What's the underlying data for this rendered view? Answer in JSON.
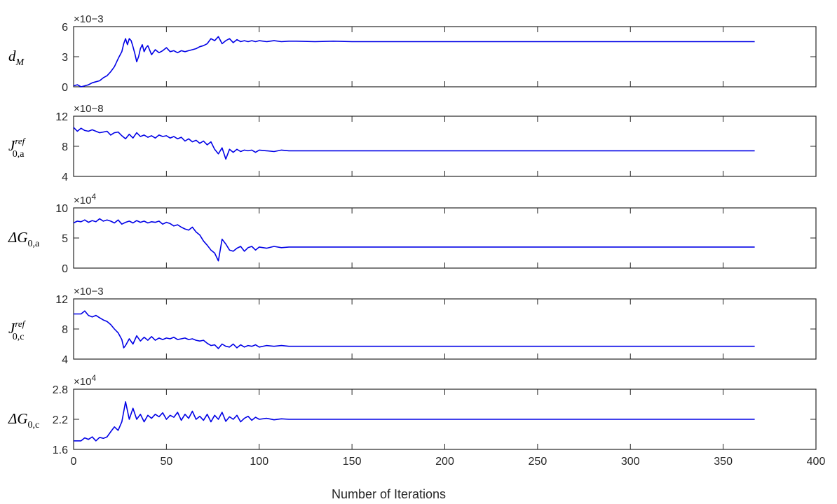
{
  "chart_data": {
    "type": "line",
    "xlabel": "Number of Iterations",
    "xlim": [
      0,
      400
    ],
    "xticks": [
      0,
      50,
      100,
      150,
      200,
      250,
      300,
      350,
      400
    ],
    "color": "#0000e6",
    "panels": [
      {
        "id": "dM",
        "ylabel": {
          "main": "d",
          "sub": "M",
          "sup": ""
        },
        "exponent": "×10−3",
        "ylim": [
          0,
          6
        ],
        "yticks": [
          "0",
          "3",
          "6"
        ],
        "ytick_values": [
          0,
          3,
          6
        ],
        "x": [
          0,
          2,
          4,
          6,
          8,
          10,
          12,
          14,
          16,
          18,
          20,
          22,
          24,
          26,
          27,
          28,
          29,
          30,
          31,
          32,
          33,
          34,
          35,
          36,
          37,
          38,
          39,
          40,
          42,
          44,
          46,
          48,
          50,
          52,
          54,
          56,
          58,
          60,
          62,
          64,
          66,
          68,
          70,
          72,
          74,
          76,
          78,
          80,
          82,
          84,
          86,
          88,
          90,
          92,
          94,
          96,
          98,
          100,
          104,
          108,
          112,
          116,
          120,
          130,
          140,
          150,
          160,
          200,
          250,
          300,
          367
        ],
        "y": [
          0.1,
          0.2,
          0.0,
          0.1,
          0.2,
          0.4,
          0.5,
          0.6,
          0.9,
          1.1,
          1.5,
          2.0,
          2.8,
          3.5,
          4.3,
          4.8,
          4.2,
          4.8,
          4.6,
          4.0,
          3.3,
          2.5,
          3.0,
          3.8,
          4.2,
          3.5,
          3.9,
          4.1,
          3.2,
          3.7,
          3.4,
          3.6,
          3.9,
          3.5,
          3.6,
          3.4,
          3.6,
          3.5,
          3.6,
          3.7,
          3.8,
          4.0,
          4.1,
          4.3,
          4.8,
          4.6,
          5.0,
          4.3,
          4.6,
          4.8,
          4.4,
          4.7,
          4.5,
          4.6,
          4.5,
          4.6,
          4.5,
          4.6,
          4.5,
          4.6,
          4.5,
          4.55,
          4.55,
          4.5,
          4.55,
          4.5,
          4.5,
          4.5,
          4.5,
          4.5,
          4.5
        ]
      },
      {
        "id": "J0a",
        "ylabel": {
          "main": "J",
          "sub": "0,a",
          "sup": "ref"
        },
        "exponent": "×10−8",
        "ylim": [
          4,
          12
        ],
        "yticks": [
          "4",
          "8",
          "12"
        ],
        "ytick_values": [
          4,
          8,
          12
        ],
        "x": [
          0,
          2,
          4,
          6,
          8,
          10,
          12,
          14,
          16,
          18,
          20,
          22,
          24,
          26,
          28,
          30,
          32,
          34,
          36,
          38,
          40,
          42,
          44,
          46,
          48,
          50,
          52,
          54,
          56,
          58,
          60,
          62,
          64,
          66,
          68,
          70,
          72,
          74,
          76,
          78,
          80,
          82,
          84,
          86,
          88,
          90,
          92,
          94,
          96,
          98,
          100,
          104,
          108,
          112,
          116,
          120,
          130,
          140,
          150,
          200,
          250,
          300,
          367
        ],
        "y": [
          10.5,
          10.0,
          10.4,
          10.1,
          10.0,
          10.2,
          10.0,
          9.8,
          9.9,
          10.0,
          9.5,
          9.8,
          9.9,
          9.4,
          9.0,
          9.6,
          9.1,
          9.8,
          9.3,
          9.5,
          9.2,
          9.4,
          9.1,
          9.5,
          9.3,
          9.4,
          9.1,
          9.3,
          9.0,
          9.2,
          8.7,
          9.0,
          8.6,
          8.8,
          8.4,
          8.7,
          8.2,
          8.6,
          7.6,
          7.0,
          7.8,
          6.3,
          7.6,
          7.2,
          7.6,
          7.3,
          7.5,
          7.4,
          7.5,
          7.2,
          7.5,
          7.4,
          7.3,
          7.5,
          7.4,
          7.4,
          7.4,
          7.4,
          7.4,
          7.4,
          7.4,
          7.4,
          7.4
        ]
      },
      {
        "id": "dG0a",
        "ylabel": {
          "main": "ΔG",
          "sub": "0,a",
          "sup": ""
        },
        "exponent": "×10",
        "exponent_power": "4",
        "ylim": [
          0,
          10
        ],
        "yticks": [
          "0",
          "5",
          "10"
        ],
        "ytick_values": [
          0,
          5,
          10
        ],
        "x": [
          0,
          2,
          4,
          6,
          8,
          10,
          12,
          14,
          16,
          18,
          20,
          22,
          24,
          26,
          28,
          30,
          32,
          34,
          36,
          38,
          40,
          42,
          44,
          46,
          48,
          50,
          52,
          54,
          56,
          58,
          60,
          62,
          64,
          66,
          68,
          70,
          72,
          74,
          76,
          78,
          80,
          82,
          84,
          86,
          88,
          90,
          92,
          94,
          96,
          98,
          100,
          104,
          108,
          112,
          116,
          120,
          130,
          140,
          150,
          200,
          250,
          300,
          367
        ],
        "y": [
          7.5,
          7.8,
          7.7,
          8.0,
          7.6,
          7.9,
          7.7,
          8.2,
          7.8,
          8.0,
          7.8,
          7.5,
          8.0,
          7.3,
          7.6,
          7.8,
          7.5,
          7.9,
          7.6,
          7.8,
          7.5,
          7.7,
          7.6,
          7.8,
          7.3,
          7.6,
          7.4,
          7.0,
          7.2,
          6.8,
          6.5,
          6.3,
          6.8,
          6.0,
          5.5,
          4.5,
          3.8,
          3.0,
          2.5,
          1.2,
          4.8,
          4.0,
          3.0,
          2.8,
          3.3,
          3.6,
          2.8,
          3.4,
          3.6,
          3.0,
          3.5,
          3.3,
          3.6,
          3.4,
          3.5,
          3.5,
          3.5,
          3.5,
          3.5,
          3.5,
          3.5,
          3.5,
          3.5
        ]
      },
      {
        "id": "J0c",
        "ylabel": {
          "main": "J",
          "sub": "0,c",
          "sup": "ref"
        },
        "exponent": "×10−3",
        "ylim": [
          4,
          12
        ],
        "yticks": [
          "4",
          "8",
          "12"
        ],
        "ytick_values": [
          4,
          8,
          12
        ],
        "x": [
          0,
          2,
          4,
          6,
          8,
          10,
          12,
          14,
          16,
          18,
          20,
          22,
          24,
          26,
          27,
          28,
          30,
          32,
          34,
          36,
          38,
          40,
          42,
          44,
          46,
          48,
          50,
          52,
          54,
          56,
          58,
          60,
          62,
          64,
          66,
          68,
          70,
          72,
          74,
          76,
          78,
          80,
          82,
          84,
          86,
          88,
          90,
          92,
          94,
          96,
          98,
          100,
          104,
          108,
          112,
          116,
          120,
          130,
          140,
          150,
          200,
          250,
          300,
          367
        ],
        "y": [
          10.0,
          10.0,
          10.0,
          10.4,
          9.8,
          9.6,
          9.8,
          9.5,
          9.2,
          9.0,
          8.6,
          8.0,
          7.5,
          6.6,
          5.5,
          5.8,
          6.7,
          6.0,
          7.1,
          6.4,
          6.9,
          6.5,
          7.0,
          6.5,
          6.8,
          6.6,
          6.8,
          6.7,
          6.9,
          6.6,
          6.7,
          6.8,
          6.6,
          6.7,
          6.5,
          6.4,
          6.5,
          6.1,
          5.8,
          5.9,
          5.4,
          6.0,
          5.7,
          5.6,
          6.0,
          5.5,
          5.9,
          5.6,
          5.8,
          5.7,
          5.9,
          5.6,
          5.8,
          5.7,
          5.8,
          5.7,
          5.7,
          5.7,
          5.7,
          5.7,
          5.7,
          5.7,
          5.7,
          5.7
        ]
      },
      {
        "id": "dG0c",
        "ylabel": {
          "main": "ΔG",
          "sub": "0,c",
          "sup": ""
        },
        "exponent": "×10",
        "exponent_power": "4",
        "ylim": [
          1.6,
          2.8
        ],
        "yticks": [
          "1.6",
          "2.2",
          "2.8"
        ],
        "ytick_values": [
          1.6,
          2.2,
          2.8
        ],
        "x": [
          0,
          2,
          4,
          6,
          8,
          10,
          12,
          14,
          16,
          18,
          20,
          22,
          24,
          26,
          28,
          30,
          32,
          34,
          36,
          38,
          40,
          42,
          44,
          46,
          48,
          50,
          52,
          54,
          56,
          58,
          60,
          62,
          64,
          66,
          68,
          70,
          72,
          74,
          76,
          78,
          80,
          82,
          84,
          86,
          88,
          90,
          92,
          94,
          96,
          98,
          100,
          104,
          108,
          112,
          116,
          120,
          130,
          140,
          150,
          200,
          250,
          300,
          367
        ],
        "y": [
          1.77,
          1.77,
          1.77,
          1.83,
          1.8,
          1.85,
          1.77,
          1.84,
          1.82,
          1.85,
          1.95,
          2.05,
          1.98,
          2.15,
          2.55,
          2.2,
          2.42,
          2.2,
          2.3,
          2.15,
          2.28,
          2.22,
          2.3,
          2.25,
          2.33,
          2.2,
          2.28,
          2.24,
          2.34,
          2.18,
          2.3,
          2.22,
          2.36,
          2.2,
          2.26,
          2.18,
          2.3,
          2.15,
          2.28,
          2.2,
          2.34,
          2.16,
          2.25,
          2.2,
          2.28,
          2.15,
          2.22,
          2.26,
          2.18,
          2.24,
          2.2,
          2.22,
          2.19,
          2.21,
          2.2,
          2.2,
          2.2,
          2.2,
          2.2,
          2.2,
          2.2,
          2.2,
          2.2
        ]
      }
    ]
  }
}
